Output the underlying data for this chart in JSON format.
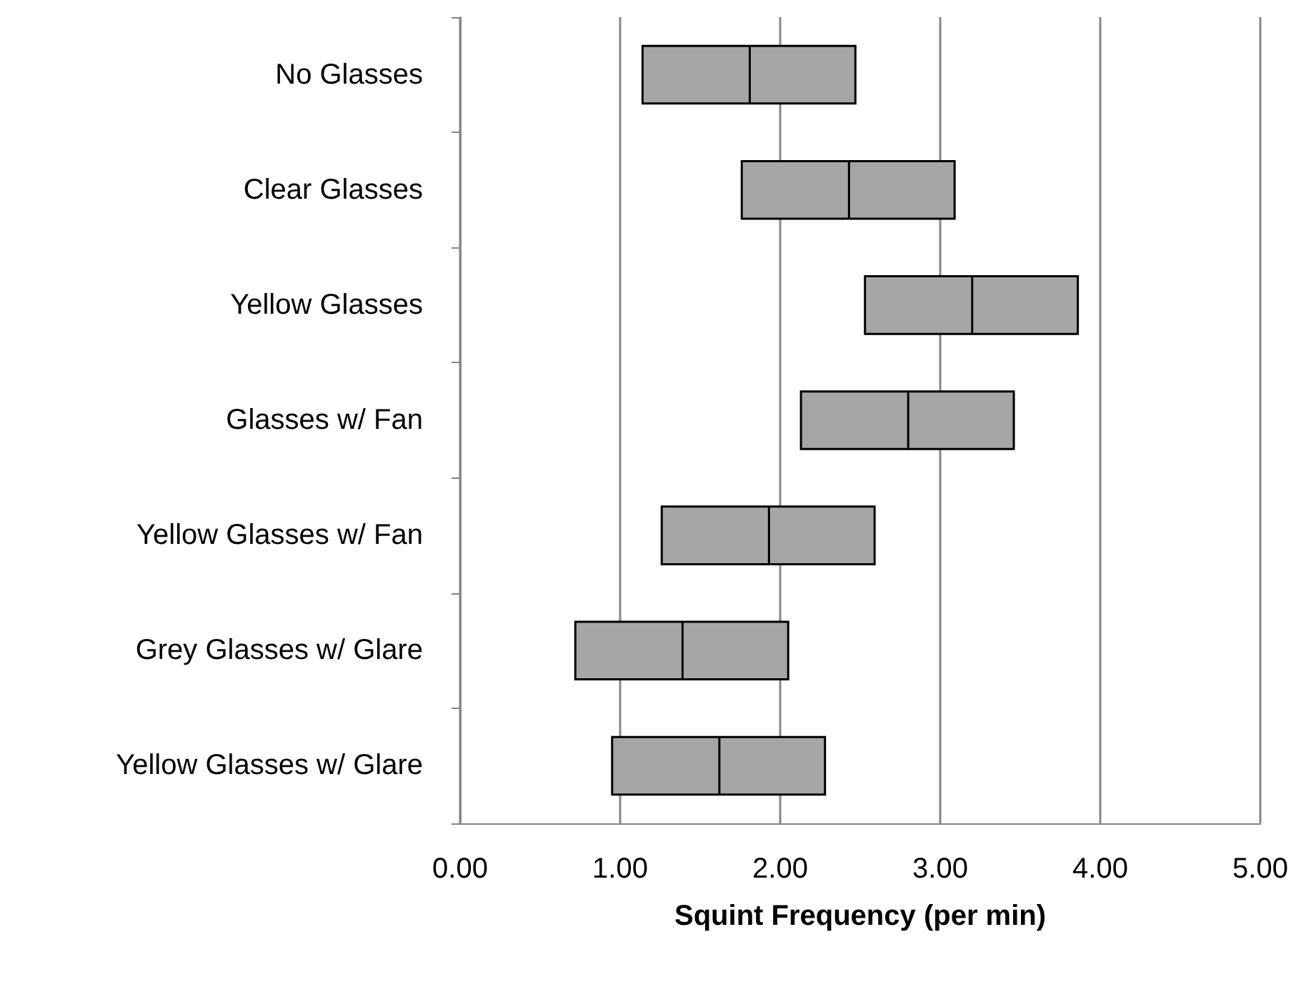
{
  "chart_data": {
    "type": "box",
    "orientation": "horizontal",
    "xlabel": "Squint Frequency (per min)",
    "categories": [
      "No Glasses",
      "Clear Glasses",
      "Yellow Glasses",
      "Glasses w/ Fan",
      "Yellow Glasses w/ Fan",
      "Grey Glasses w/ Glare",
      "Yellow Glasses w/ Glare"
    ],
    "boxes": [
      {
        "low": 1.14,
        "q1": 1.14,
        "median": 1.81,
        "q3": 2.47,
        "high": 2.47
      },
      {
        "low": 1.76,
        "q1": 1.76,
        "median": 2.43,
        "q3": 3.09,
        "high": 3.09
      },
      {
        "low": 2.53,
        "q1": 2.53,
        "median": 3.2,
        "q3": 3.86,
        "high": 3.86
      },
      {
        "low": 2.13,
        "q1": 2.13,
        "median": 2.8,
        "q3": 3.46,
        "high": 3.46
      },
      {
        "low": 1.26,
        "q1": 1.26,
        "median": 1.93,
        "q3": 2.59,
        "high": 2.59
      },
      {
        "low": 0.72,
        "q1": 0.72,
        "median": 1.39,
        "q3": 2.05,
        "high": 2.05
      },
      {
        "low": 0.95,
        "q1": 0.95,
        "median": 1.62,
        "q3": 2.28,
        "high": 2.28
      }
    ],
    "color": "#a6a6a6",
    "xlim": [
      0,
      5
    ],
    "xticks": [
      {
        "value": 0,
        "label": "0.00"
      },
      {
        "value": 1,
        "label": "1.00"
      },
      {
        "value": 2,
        "label": "2.00"
      },
      {
        "value": 3,
        "label": "3.00"
      },
      {
        "value": 4,
        "label": "4.00"
      },
      {
        "value": 5,
        "label": "5.00"
      }
    ],
    "grid": "x"
  }
}
